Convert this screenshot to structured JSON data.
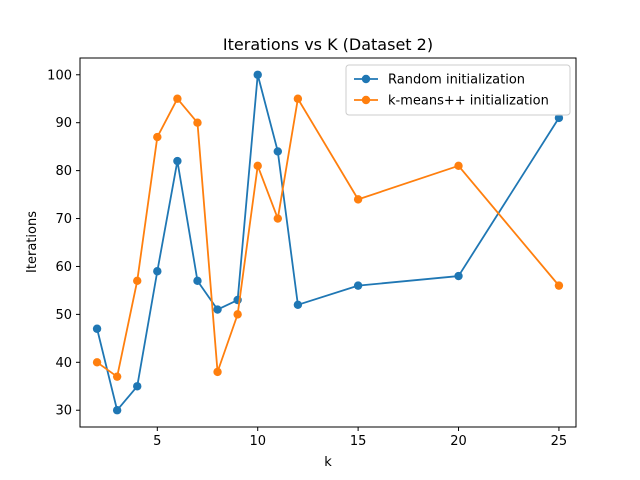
{
  "chart_data": {
    "type": "line",
    "title": "Iterations vs K (Dataset 2)",
    "xlabel": "k",
    "ylabel": "Iterations",
    "xlim": [
      1.15,
      25.85
    ],
    "ylim": [
      26.5,
      103.5
    ],
    "xticks": [
      5,
      10,
      15,
      20,
      25
    ],
    "yticks": [
      30,
      40,
      50,
      60,
      70,
      80,
      90,
      100
    ],
    "grid": false,
    "legend_position": "top-right",
    "x": [
      2,
      3,
      4,
      5,
      6,
      7,
      8,
      9,
      10,
      11,
      12,
      15,
      20,
      25
    ],
    "series": [
      {
        "name": "Random initialization",
        "color": "#1f77b4",
        "marker": "circle",
        "values": [
          47,
          30,
          35,
          59,
          82,
          57,
          51,
          53,
          100,
          84,
          52,
          56,
          58,
          91
        ]
      },
      {
        "name": "k-means++ initialization",
        "color": "#ff7f0e",
        "marker": "circle",
        "values": [
          40,
          37,
          57,
          87,
          95,
          90,
          38,
          50,
          81,
          70,
          95,
          74,
          81,
          56
        ]
      }
    ]
  }
}
